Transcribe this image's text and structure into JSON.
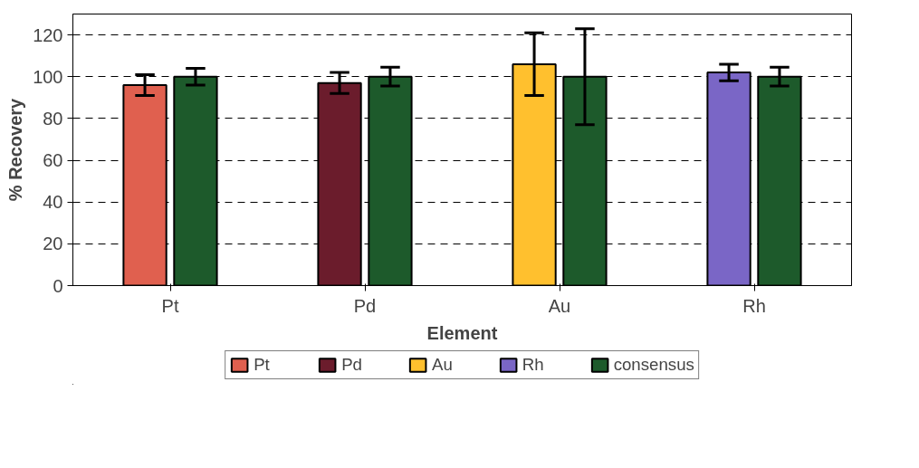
{
  "chart_data": {
    "type": "bar",
    "xlabel": "Element",
    "ylabel": "% Recovery",
    "categories": [
      "Pt",
      "Pd",
      "Au",
      "Rh"
    ],
    "series": [
      {
        "name": "Pt",
        "color": "#e0604f",
        "values": [
          96,
          null,
          null,
          null
        ],
        "errors": [
          5,
          null,
          null,
          null
        ]
      },
      {
        "name": "Pd",
        "color": "#6b1c2c",
        "values": [
          null,
          97,
          null,
          null
        ],
        "errors": [
          null,
          5,
          null,
          null
        ]
      },
      {
        "name": "Au",
        "color": "#ffc02e",
        "values": [
          null,
          null,
          106,
          null
        ],
        "errors": [
          null,
          null,
          15,
          null
        ]
      },
      {
        "name": "Rh",
        "color": "#7a66c6",
        "values": [
          null,
          null,
          null,
          102
        ],
        "errors": [
          null,
          null,
          null,
          4
        ]
      },
      {
        "name": "consensus",
        "color": "#1d5a2b",
        "values": [
          100,
          100,
          100,
          100
        ],
        "errors": [
          4,
          4.5,
          23,
          4.5
        ]
      }
    ],
    "ylim": [
      0,
      130
    ],
    "yticks": [
      0,
      20,
      40,
      60,
      80,
      100,
      120
    ],
    "grid": "y",
    "legend": "bottom"
  }
}
